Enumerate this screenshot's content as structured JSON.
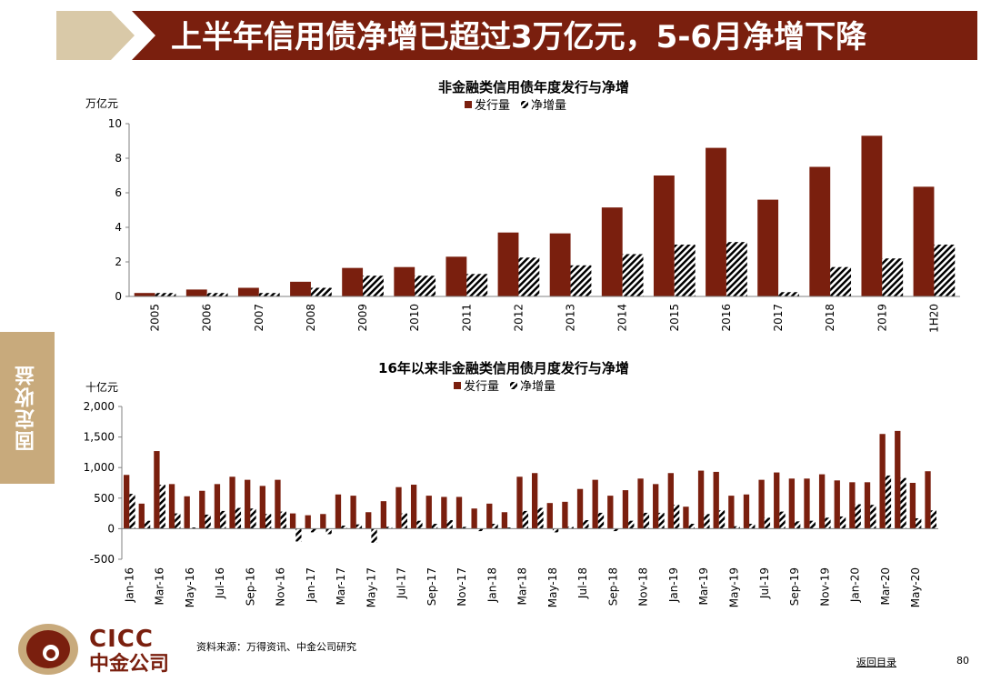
{
  "title": "上半年信用债净增已超过3万亿元，5-6月净增下降",
  "side_tab": "固定收益",
  "footer": {
    "source": "资料来源：万得资讯、中金公司研究",
    "nav": "返回目录",
    "page": "80"
  },
  "logo": {
    "en": "CICC",
    "cn": "中金公司"
  },
  "colors": {
    "banner": "#7a1f0e",
    "chevron": "#d9c9a8",
    "issuance": "#7a1f0e",
    "net": "#000000",
    "side_tab": "#c8aa7c"
  },
  "chart_data": [
    {
      "type": "bar",
      "title": "非金融类信用债年度发行与净增",
      "unit": "万亿元",
      "categories": [
        "2005",
        "2006",
        "2007",
        "2008",
        "2009",
        "2010",
        "2011",
        "2012",
        "2013",
        "2014",
        "2015",
        "2016",
        "2017",
        "2018",
        "2019",
        "1H20"
      ],
      "series": [
        {
          "name": "发行量",
          "style": "solid",
          "values": [
            0.2,
            0.4,
            0.5,
            0.85,
            1.65,
            1.7,
            2.3,
            3.7,
            3.65,
            5.15,
            7.0,
            8.6,
            5.6,
            7.5,
            9.3,
            6.35
          ]
        },
        {
          "name": "净增量",
          "style": "hatched",
          "values": [
            0.2,
            0.2,
            0.2,
            0.5,
            1.2,
            1.2,
            1.3,
            2.25,
            1.8,
            2.45,
            3.0,
            3.15,
            0.25,
            1.7,
            2.2,
            3.0
          ]
        }
      ],
      "ylim": [
        0,
        10
      ],
      "yticks": [
        "0",
        "2",
        "4",
        "6",
        "8",
        "10"
      ],
      "legend": "top-center"
    },
    {
      "type": "bar",
      "title": "16年以来非金融类信用债月度发行与净增",
      "unit": "十亿元",
      "categories": [
        "Jan-16",
        "Feb-16",
        "Mar-16",
        "Apr-16",
        "May-16",
        "Jun-16",
        "Jul-16",
        "Aug-16",
        "Sep-16",
        "Oct-16",
        "Nov-16",
        "Dec-16",
        "Jan-17",
        "Feb-17",
        "Mar-17",
        "Apr-17",
        "May-17",
        "Jun-17",
        "Jul-17",
        "Aug-17",
        "Sep-17",
        "Oct-17",
        "Nov-17",
        "Dec-17",
        "Jan-18",
        "Feb-18",
        "Mar-18",
        "Apr-18",
        "May-18",
        "Jun-18",
        "Jul-18",
        "Aug-18",
        "Sep-18",
        "Oct-18",
        "Nov-18",
        "Dec-18",
        "Jan-19",
        "Feb-19",
        "Mar-19",
        "Apr-19",
        "May-19",
        "Jun-19",
        "Jul-19",
        "Aug-19",
        "Sep-19",
        "Oct-19",
        "Nov-19",
        "Dec-19",
        "Jan-20",
        "Feb-20",
        "Mar-20",
        "Apr-20",
        "May-20",
        "Jun-20"
      ],
      "tick_labels": [
        "Jan-16",
        "Mar-16",
        "May-16",
        "Jul-16",
        "Sep-16",
        "Nov-16",
        "Jan-17",
        "Mar-17",
        "May-17",
        "Jul-17",
        "Sep-17",
        "Nov-17",
        "Jan-18",
        "Mar-18",
        "May-18",
        "Jul-18",
        "Sep-18",
        "Nov-18",
        "Jan-19",
        "Mar-19",
        "May-19",
        "Jul-19",
        "Sep-19",
        "Nov-19",
        "Jan-20",
        "Mar-20",
        "May-20"
      ],
      "series": [
        {
          "name": "发行量",
          "style": "solid",
          "values": [
            880,
            410,
            1270,
            730,
            530,
            620,
            730,
            850,
            800,
            700,
            800,
            250,
            220,
            240,
            560,
            540,
            270,
            450,
            680,
            720,
            540,
            520,
            520,
            330,
            410,
            270,
            850,
            910,
            420,
            440,
            650,
            800,
            540,
            630,
            820,
            730,
            910,
            360,
            950,
            930,
            540,
            560,
            800,
            920,
            820,
            820,
            890,
            790,
            760,
            760,
            1550,
            1600,
            750,
            940
          ]
        },
        {
          "name": "净增量",
          "style": "hatched",
          "values": [
            570,
            130,
            720,
            250,
            20,
            230,
            290,
            340,
            330,
            240,
            280,
            -210,
            -60,
            -90,
            50,
            70,
            -230,
            30,
            250,
            130,
            80,
            140,
            30,
            -40,
            80,
            20,
            290,
            340,
            -60,
            30,
            140,
            260,
            -40,
            130,
            260,
            260,
            390,
            80,
            240,
            300,
            40,
            80,
            180,
            280,
            120,
            130,
            180,
            200,
            400,
            390,
            870,
            830,
            170,
            300
          ]
        }
      ],
      "ylim": [
        -500,
        2000
      ],
      "yticks": [
        "-500",
        "0",
        "500",
        "1,000",
        "1,500",
        "2,000"
      ],
      "legend": "top-center"
    }
  ]
}
